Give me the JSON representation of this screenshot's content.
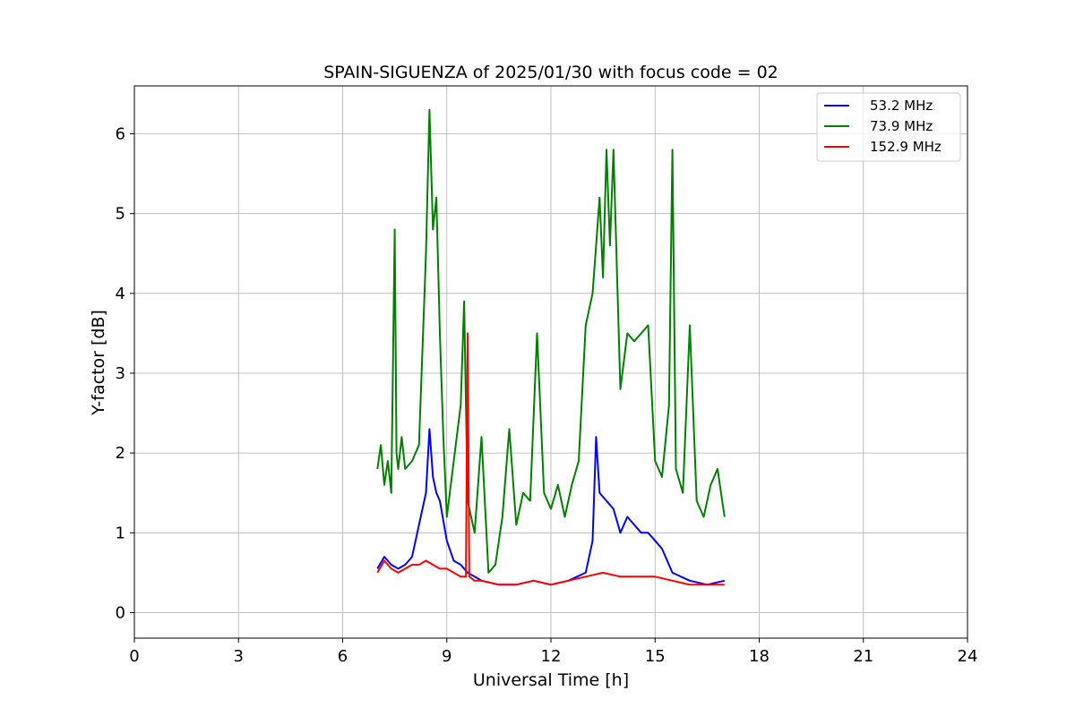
{
  "chart_data": {
    "type": "line",
    "title": "SPAIN-SIGUENZA of 2025/01/30 with focus code = 02",
    "xlabel": "Universal Time [h]",
    "ylabel": "Y-factor [dB]",
    "xlim": [
      0,
      24
    ],
    "ylim": [
      -0.32,
      6.6
    ],
    "xticks": [
      0,
      3,
      6,
      9,
      12,
      15,
      18,
      21,
      24
    ],
    "yticks": [
      0,
      1,
      2,
      3,
      4,
      5,
      6
    ],
    "grid": true,
    "legend_position": "top-right",
    "series": [
      {
        "name": "53.2 MHz",
        "color": "#0000ff",
        "x": [
          7.0,
          7.2,
          7.4,
          7.6,
          7.8,
          8.0,
          8.2,
          8.3,
          8.4,
          8.5,
          8.6,
          8.7,
          8.8,
          9.0,
          9.2,
          9.4,
          9.6,
          9.8,
          10.0,
          10.5,
          11.0,
          11.5,
          12.0,
          12.5,
          13.0,
          13.2,
          13.3,
          13.4,
          13.6,
          13.8,
          14.0,
          14.2,
          14.4,
          14.6,
          14.8,
          15.0,
          15.2,
          15.5,
          16.0,
          16.5,
          17.0
        ],
        "y": [
          0.55,
          0.7,
          0.6,
          0.55,
          0.6,
          0.7,
          1.1,
          1.3,
          1.5,
          2.3,
          1.7,
          1.5,
          1.4,
          0.9,
          0.65,
          0.6,
          0.5,
          0.45,
          0.4,
          0.35,
          0.35,
          0.4,
          0.35,
          0.4,
          0.5,
          0.9,
          2.2,
          1.5,
          1.4,
          1.3,
          1.0,
          1.2,
          1.1,
          1.0,
          1.0,
          0.9,
          0.8,
          0.5,
          0.4,
          0.35,
          0.4
        ]
      },
      {
        "name": "73.9 MHz",
        "color": "#008000",
        "x": [
          7.0,
          7.1,
          7.2,
          7.3,
          7.4,
          7.5,
          7.55,
          7.6,
          7.7,
          7.8,
          8.0,
          8.2,
          8.4,
          8.5,
          8.6,
          8.7,
          8.8,
          8.9,
          9.0,
          9.2,
          9.4,
          9.5,
          9.6,
          9.8,
          10.0,
          10.2,
          10.4,
          10.6,
          10.8,
          11.0,
          11.2,
          11.4,
          11.6,
          11.8,
          12.0,
          12.2,
          12.4,
          12.6,
          12.8,
          13.0,
          13.2,
          13.4,
          13.5,
          13.6,
          13.7,
          13.8,
          14.0,
          14.2,
          14.4,
          14.6,
          14.8,
          15.0,
          15.2,
          15.4,
          15.5,
          15.6,
          15.8,
          16.0,
          16.2,
          16.4,
          16.6,
          16.8,
          17.0
        ],
        "y": [
          1.8,
          2.1,
          1.6,
          1.9,
          1.5,
          4.8,
          2.0,
          1.8,
          2.2,
          1.8,
          1.9,
          2.1,
          4.5,
          6.3,
          4.8,
          5.2,
          3.5,
          2.2,
          1.2,
          1.9,
          2.6,
          3.9,
          1.4,
          1.0,
          2.2,
          0.5,
          0.6,
          1.2,
          2.3,
          1.1,
          1.5,
          1.4,
          3.5,
          1.5,
          1.3,
          1.6,
          1.2,
          1.6,
          1.9,
          3.6,
          4.0,
          5.2,
          4.2,
          5.8,
          4.6,
          5.8,
          2.8,
          3.5,
          3.4,
          3.5,
          3.6,
          1.9,
          1.7,
          2.6,
          5.8,
          1.8,
          1.5,
          3.6,
          1.4,
          1.2,
          1.6,
          1.8,
          1.2
        ]
      },
      {
        "name": "152.9 MHz",
        "color": "#ff0000",
        "x": [
          7.0,
          7.2,
          7.4,
          7.6,
          7.8,
          8.0,
          8.2,
          8.4,
          8.6,
          8.8,
          9.0,
          9.2,
          9.4,
          9.55,
          9.6,
          9.65,
          9.8,
          10.0,
          10.5,
          11.0,
          11.5,
          12.0,
          12.5,
          13.0,
          13.5,
          14.0,
          14.5,
          15.0,
          15.5,
          16.0,
          16.5,
          17.0
        ],
        "y": [
          0.5,
          0.65,
          0.55,
          0.5,
          0.55,
          0.6,
          0.6,
          0.65,
          0.6,
          0.55,
          0.55,
          0.5,
          0.45,
          0.45,
          3.5,
          0.45,
          0.4,
          0.4,
          0.35,
          0.35,
          0.4,
          0.35,
          0.4,
          0.45,
          0.5,
          0.45,
          0.45,
          0.45,
          0.4,
          0.35,
          0.35,
          0.35
        ]
      }
    ]
  }
}
